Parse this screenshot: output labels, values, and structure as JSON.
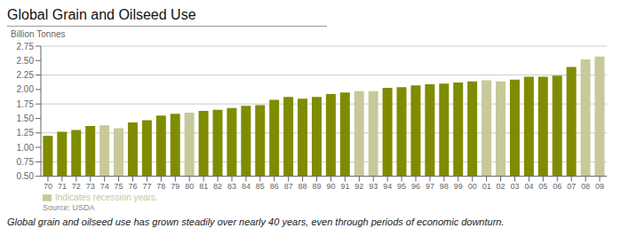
{
  "chart_data": {
    "type": "bar",
    "title": "Global Grain and Oilseed Use",
    "ylabel": "Billion Tonnes",
    "annotations": [
      "Source: USDA",
      "Global grain and oilseed use has grown steadily over nearly 40 years, even through periods of economic downturn."
    ],
    "categories": [
      "70",
      "71",
      "72",
      "73",
      "74",
      "75",
      "76",
      "77",
      "78",
      "79",
      "80",
      "81",
      "82",
      "83",
      "84",
      "85",
      "86",
      "87",
      "88",
      "89",
      "90",
      "91",
      "92",
      "93",
      "94",
      "95",
      "96",
      "97",
      "98",
      "99",
      "00",
      "01",
      "02",
      "03",
      "04",
      "05",
      "06",
      "07",
      "08",
      "09"
    ],
    "series": [
      {
        "color": "#7f8c00",
        "values": [
          1.2,
          1.27,
          1.3,
          1.37,
          null,
          null,
          1.43,
          1.47,
          1.55,
          1.58,
          null,
          1.63,
          1.65,
          1.68,
          1.72,
          1.73,
          1.82,
          1.87,
          1.84,
          1.87,
          1.92,
          1.95,
          null,
          null,
          2.03,
          2.04,
          2.07,
          2.09,
          2.1,
          2.12,
          2.14,
          null,
          null,
          2.17,
          2.22,
          2.22,
          2.24,
          2.39,
          null,
          null
        ]
      },
      {
        "name": "Indicates recession years.",
        "color": "#c8c89a",
        "values": [
          null,
          null,
          null,
          null,
          1.38,
          1.33,
          null,
          null,
          null,
          null,
          1.6,
          null,
          null,
          null,
          null,
          null,
          null,
          null,
          null,
          null,
          null,
          null,
          1.97,
          1.97,
          null,
          null,
          null,
          null,
          null,
          null,
          null,
          2.16,
          2.14,
          null,
          null,
          null,
          null,
          null,
          2.52,
          2.57
        ]
      }
    ],
    "stacked": true,
    "ylim": [
      0.5,
      2.75
    ],
    "yticks": [
      {
        "value": 0.5,
        "label": "0.50"
      },
      {
        "value": 0.75,
        "label": "0.75"
      },
      {
        "value": 1,
        "label": "1.00"
      },
      {
        "value": 1.25,
        "label": "1.25"
      },
      {
        "value": 1.5,
        "label": "1.50"
      },
      {
        "value": 1.75,
        "label": "1.75"
      },
      {
        "value": 2,
        "label": "2.00"
      },
      {
        "value": 2.25,
        "label": "2.25"
      },
      {
        "value": 2.5,
        "label": "2.50"
      },
      {
        "value": 2.75,
        "label": "2.75"
      }
    ],
    "grid": true,
    "legend": "lower left"
  }
}
